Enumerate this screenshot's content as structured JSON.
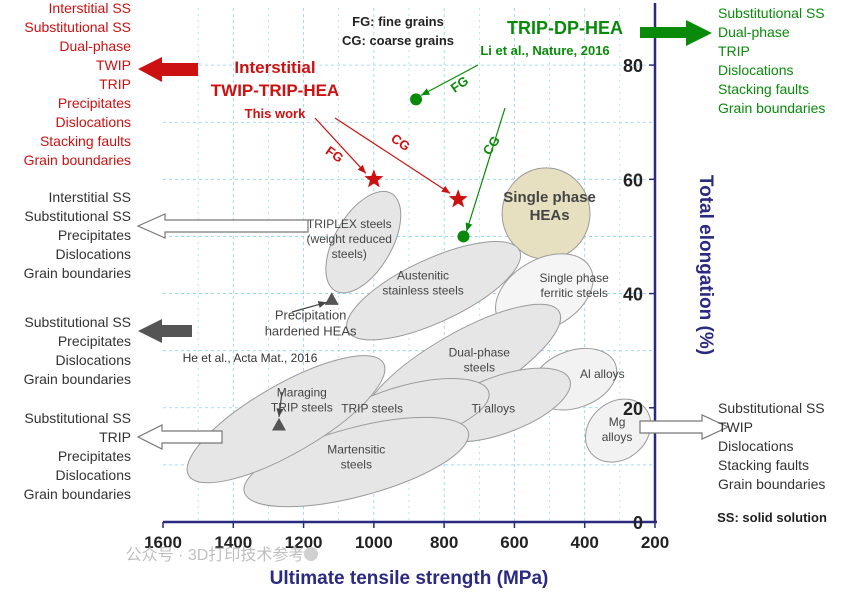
{
  "chart_data": {
    "type": "scatter",
    "x_axis": {
      "label": "Ultimate tensile strength (MPa)",
      "range": [
        200,
        1600
      ],
      "direction": "decreasing-left-to-right",
      "ticks": [
        200,
        400,
        600,
        800,
        1000,
        1200,
        1400,
        1600
      ]
    },
    "y_axis": {
      "label": "Total elongation (%)",
      "position": "right",
      "range": [
        0,
        90
      ],
      "ticks": [
        0,
        20,
        40,
        60,
        80
      ]
    },
    "grid": true,
    "regions": [
      {
        "label": "Single phase HEAs",
        "cx": 510,
        "cy": 54,
        "rx": 125,
        "ry": 8,
        "angle": 0,
        "fill": "#e6dfc0"
      },
      {
        "label": "TRIPLEX steels (weight reduced steels)",
        "cx": 1030,
        "cy": 49,
        "rx": 160,
        "ry": 5,
        "angle": -60,
        "fill": "#e6e6e6"
      },
      {
        "label": "Austenitic stainless steels",
        "cx": 830,
        "cy": 40.5,
        "rx": 270,
        "ry": 5.5,
        "angle": -25,
        "fill": "#e6e6e6"
      },
      {
        "label": "Single phase ferritic steels",
        "cx": 515,
        "cy": 40,
        "rx": 150,
        "ry": 6,
        "angle": -30,
        "fill": "#f5f5f5"
      },
      {
        "label": "Precipitation hardened HEAs",
        "cx": 0,
        "cy": 0,
        "rx": 0,
        "ry": 0,
        "angle": 0,
        "fill": "none"
      },
      {
        "label": "Dual-phase steels",
        "cx": 750,
        "cy": 27,
        "rx": 320,
        "ry": 6,
        "angle": -30,
        "fill": "#e6e6e6"
      },
      {
        "label": "Al alloys",
        "cx": 430,
        "cy": 25,
        "rx": 125,
        "ry": 5,
        "angle": -20,
        "fill": "#f2f2f2"
      },
      {
        "label": "Mg alloys",
        "cx": 305,
        "cy": 16,
        "rx": 100,
        "ry": 5,
        "angle": -40,
        "fill": "#f2f2f2"
      },
      {
        "label": "Ti alloys",
        "cx": 640,
        "cy": 20.5,
        "rx": 210,
        "ry": 5,
        "angle": -20,
        "fill": "#e6e6e6"
      },
      {
        "label": "TRIP steels",
        "cx": 900,
        "cy": 19,
        "rx": 235,
        "ry": 5,
        "angle": -15,
        "fill": "#e6e6e6"
      },
      {
        "label": "Martensitic steels",
        "cx": 1050,
        "cy": 10.5,
        "rx": 330,
        "ry": 6,
        "angle": -15,
        "fill": "#e6e6e6"
      },
      {
        "label": "Maraging TRIP steels",
        "cx": 1250,
        "cy": 18,
        "rx": 320,
        "ry": 6,
        "angle": -30,
        "fill": "#e6e6e6"
      }
    ],
    "region_label_lines": {
      "Single phase HEAs": [
        "Single phase",
        "HEAs"
      ],
      "TRIPLEX steels (weight reduced steels)": [
        "TRIPLEX steels",
        "(weight reduced",
        "steels)"
      ],
      "Austenitic stainless steels": [
        "Austenitic",
        "stainless steels"
      ],
      "Single phase ferritic steels": [
        "Single phase",
        "ferritic steels"
      ],
      "Precipitation hardened HEAs": [
        "Precipitation",
        "hardened HEAs"
      ],
      "Dual-phase steels": [
        "Dual-phase",
        "steels"
      ],
      "Al alloys": [
        "Al alloys"
      ],
      "Mg alloys": [
        "Mg",
        "alloys"
      ],
      "Ti alloys": [
        "Ti alloys"
      ],
      "TRIP steels": [
        "TRIP steels"
      ],
      "Martensitic steels": [
        "Martensitic",
        "steels"
      ],
      "Maraging TRIP steels": [
        "Maraging",
        "TRIP steels"
      ]
    },
    "series": [
      {
        "name": "Interstitial TWIP-TRIP-HEA",
        "marker": "star",
        "color": "#cc1111",
        "points": [
          {
            "x": 1000,
            "y": 60,
            "label": "FG"
          },
          {
            "x": 760,
            "y": 56.5,
            "label": "CG"
          }
        ]
      },
      {
        "name": "TRIP-DP-HEA",
        "marker": "circle",
        "color": "#0a8a0a",
        "points": [
          {
            "x": 880,
            "y": 74,
            "label": "FG"
          },
          {
            "x": 745,
            "y": 50,
            "label": "CG"
          }
        ]
      },
      {
        "name": "Precipitation hardened HEAs",
        "marker": "triangle",
        "color": "#555555",
        "points": [
          {
            "x": 1120,
            "y": 39
          }
        ]
      },
      {
        "name": "Maraging TRIP steels",
        "marker": "triangle",
        "color": "#555555",
        "points": [
          {
            "x": 1270,
            "y": 17
          }
        ]
      }
    ],
    "annotations": {
      "legend_fg": "FG: fine grains",
      "legend_cg": "CG: coarse grains",
      "this_work_title": [
        "Interstitial",
        "TWIP-TRIP-HEA"
      ],
      "this_work_sub": "This work",
      "trip_dp_title": "TRIP-DP-HEA",
      "trip_dp_ref": "Li et al., Nature, 2016",
      "prec_ref": "He et al., Acta Mat., 2016",
      "ss_note": "SS: solid solution",
      "fg": "FG",
      "cg": "CG"
    },
    "mechanism_lists": [
      {
        "id": "red-left",
        "color": "#cc1111",
        "items": [
          "Interstitial SS",
          "Substitutional SS",
          "Dual-phase",
          "TWIP",
          "TRIP",
          "Precipitates",
          "Dislocations",
          "Stacking faults",
          "Grain boundaries"
        ]
      },
      {
        "id": "green-right",
        "color": "#0a8a0a",
        "items": [
          "Substitutional SS",
          "Dual-phase",
          "TRIP",
          "Dislocations",
          "Stacking faults",
          "Grain boundaries"
        ]
      },
      {
        "id": "gray-left-1",
        "color": "#333333",
        "items": [
          "Interstitial SS",
          "Substitutional SS",
          "Precipitates",
          "Dislocations",
          "Grain boundaries"
        ]
      },
      {
        "id": "gray-left-2",
        "color": "#333333",
        "items": [
          "Substitutional SS",
          "Precipitates",
          "Dislocations",
          "Grain boundaries"
        ]
      },
      {
        "id": "gray-left-3",
        "color": "#333333",
        "items": [
          "Substitutional SS",
          "TRIP",
          "Precipitates",
          "Dislocations",
          "Grain boundaries"
        ]
      },
      {
        "id": "gray-right",
        "color": "#333333",
        "items": [
          "Substitutional SS",
          "TWIP",
          "Dislocations",
          "Stacking faults",
          "Grain boundaries"
        ]
      }
    ],
    "watermark": "公众号 · 3D打印技术参考"
  },
  "colors": {
    "axis": "#2a2a80",
    "grid": "#8fd0ee",
    "red": "#cc1111",
    "green": "#0a8a0a",
    "gray": "#555555"
  }
}
